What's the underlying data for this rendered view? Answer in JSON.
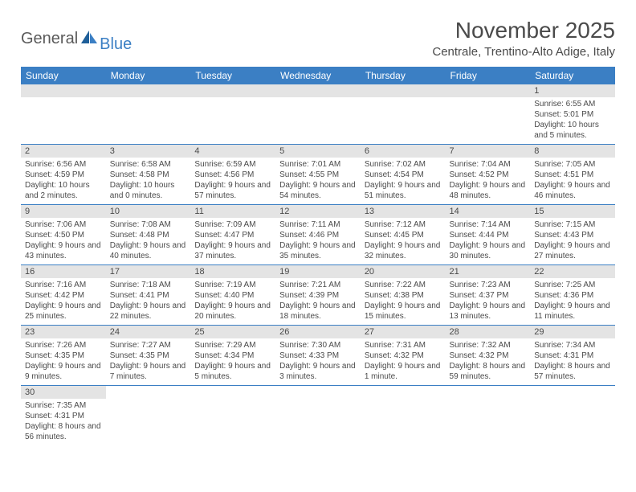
{
  "logo": {
    "text1": "General",
    "text2": "Blue"
  },
  "title": "November 2025",
  "location": "Centrale, Trentino-Alto Adige, Italy",
  "colors": {
    "header_bg": "#3b7fc4",
    "header_text": "#ffffff",
    "daynum_bg": "#e4e4e4",
    "empty_bg": "#f0f0f0",
    "border": "#3b7fc4",
    "text": "#4a4a4a"
  },
  "day_headers": [
    "Sunday",
    "Monday",
    "Tuesday",
    "Wednesday",
    "Thursday",
    "Friday",
    "Saturday"
  ],
  "weeks": [
    [
      null,
      null,
      null,
      null,
      null,
      null,
      {
        "num": "1",
        "sunrise": "Sunrise: 6:55 AM",
        "sunset": "Sunset: 5:01 PM",
        "daylight": "Daylight: 10 hours and 5 minutes."
      }
    ],
    [
      {
        "num": "2",
        "sunrise": "Sunrise: 6:56 AM",
        "sunset": "Sunset: 4:59 PM",
        "daylight": "Daylight: 10 hours and 2 minutes."
      },
      {
        "num": "3",
        "sunrise": "Sunrise: 6:58 AM",
        "sunset": "Sunset: 4:58 PM",
        "daylight": "Daylight: 10 hours and 0 minutes."
      },
      {
        "num": "4",
        "sunrise": "Sunrise: 6:59 AM",
        "sunset": "Sunset: 4:56 PM",
        "daylight": "Daylight: 9 hours and 57 minutes."
      },
      {
        "num": "5",
        "sunrise": "Sunrise: 7:01 AM",
        "sunset": "Sunset: 4:55 PM",
        "daylight": "Daylight: 9 hours and 54 minutes."
      },
      {
        "num": "6",
        "sunrise": "Sunrise: 7:02 AM",
        "sunset": "Sunset: 4:54 PM",
        "daylight": "Daylight: 9 hours and 51 minutes."
      },
      {
        "num": "7",
        "sunrise": "Sunrise: 7:04 AM",
        "sunset": "Sunset: 4:52 PM",
        "daylight": "Daylight: 9 hours and 48 minutes."
      },
      {
        "num": "8",
        "sunrise": "Sunrise: 7:05 AM",
        "sunset": "Sunset: 4:51 PM",
        "daylight": "Daylight: 9 hours and 46 minutes."
      }
    ],
    [
      {
        "num": "9",
        "sunrise": "Sunrise: 7:06 AM",
        "sunset": "Sunset: 4:50 PM",
        "daylight": "Daylight: 9 hours and 43 minutes."
      },
      {
        "num": "10",
        "sunrise": "Sunrise: 7:08 AM",
        "sunset": "Sunset: 4:48 PM",
        "daylight": "Daylight: 9 hours and 40 minutes."
      },
      {
        "num": "11",
        "sunrise": "Sunrise: 7:09 AM",
        "sunset": "Sunset: 4:47 PM",
        "daylight": "Daylight: 9 hours and 37 minutes."
      },
      {
        "num": "12",
        "sunrise": "Sunrise: 7:11 AM",
        "sunset": "Sunset: 4:46 PM",
        "daylight": "Daylight: 9 hours and 35 minutes."
      },
      {
        "num": "13",
        "sunrise": "Sunrise: 7:12 AM",
        "sunset": "Sunset: 4:45 PM",
        "daylight": "Daylight: 9 hours and 32 minutes."
      },
      {
        "num": "14",
        "sunrise": "Sunrise: 7:14 AM",
        "sunset": "Sunset: 4:44 PM",
        "daylight": "Daylight: 9 hours and 30 minutes."
      },
      {
        "num": "15",
        "sunrise": "Sunrise: 7:15 AM",
        "sunset": "Sunset: 4:43 PM",
        "daylight": "Daylight: 9 hours and 27 minutes."
      }
    ],
    [
      {
        "num": "16",
        "sunrise": "Sunrise: 7:16 AM",
        "sunset": "Sunset: 4:42 PM",
        "daylight": "Daylight: 9 hours and 25 minutes."
      },
      {
        "num": "17",
        "sunrise": "Sunrise: 7:18 AM",
        "sunset": "Sunset: 4:41 PM",
        "daylight": "Daylight: 9 hours and 22 minutes."
      },
      {
        "num": "18",
        "sunrise": "Sunrise: 7:19 AM",
        "sunset": "Sunset: 4:40 PM",
        "daylight": "Daylight: 9 hours and 20 minutes."
      },
      {
        "num": "19",
        "sunrise": "Sunrise: 7:21 AM",
        "sunset": "Sunset: 4:39 PM",
        "daylight": "Daylight: 9 hours and 18 minutes."
      },
      {
        "num": "20",
        "sunrise": "Sunrise: 7:22 AM",
        "sunset": "Sunset: 4:38 PM",
        "daylight": "Daylight: 9 hours and 15 minutes."
      },
      {
        "num": "21",
        "sunrise": "Sunrise: 7:23 AM",
        "sunset": "Sunset: 4:37 PM",
        "daylight": "Daylight: 9 hours and 13 minutes."
      },
      {
        "num": "22",
        "sunrise": "Sunrise: 7:25 AM",
        "sunset": "Sunset: 4:36 PM",
        "daylight": "Daylight: 9 hours and 11 minutes."
      }
    ],
    [
      {
        "num": "23",
        "sunrise": "Sunrise: 7:26 AM",
        "sunset": "Sunset: 4:35 PM",
        "daylight": "Daylight: 9 hours and 9 minutes."
      },
      {
        "num": "24",
        "sunrise": "Sunrise: 7:27 AM",
        "sunset": "Sunset: 4:35 PM",
        "daylight": "Daylight: 9 hours and 7 minutes."
      },
      {
        "num": "25",
        "sunrise": "Sunrise: 7:29 AM",
        "sunset": "Sunset: 4:34 PM",
        "daylight": "Daylight: 9 hours and 5 minutes."
      },
      {
        "num": "26",
        "sunrise": "Sunrise: 7:30 AM",
        "sunset": "Sunset: 4:33 PM",
        "daylight": "Daylight: 9 hours and 3 minutes."
      },
      {
        "num": "27",
        "sunrise": "Sunrise: 7:31 AM",
        "sunset": "Sunset: 4:32 PM",
        "daylight": "Daylight: 9 hours and 1 minute."
      },
      {
        "num": "28",
        "sunrise": "Sunrise: 7:32 AM",
        "sunset": "Sunset: 4:32 PM",
        "daylight": "Daylight: 8 hours and 59 minutes."
      },
      {
        "num": "29",
        "sunrise": "Sunrise: 7:34 AM",
        "sunset": "Sunset: 4:31 PM",
        "daylight": "Daylight: 8 hours and 57 minutes."
      }
    ],
    [
      {
        "num": "30",
        "sunrise": "Sunrise: 7:35 AM",
        "sunset": "Sunset: 4:31 PM",
        "daylight": "Daylight: 8 hours and 56 minutes."
      },
      null,
      null,
      null,
      null,
      null,
      null
    ]
  ]
}
